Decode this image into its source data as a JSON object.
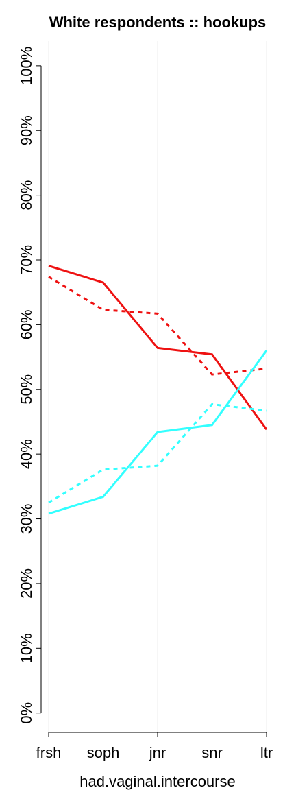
{
  "chart_data": {
    "type": "line",
    "title": "White respondents :: hookups",
    "x_label": "had.vaginal.intercourse",
    "categories": [
      "frsh",
      "soph",
      "jnr",
      "snr",
      "ltr"
    ],
    "series": [
      {
        "color": "#ee1111",
        "dashed": false,
        "values": [
          69.1,
          66.5,
          56.4,
          55.4,
          43.8
        ]
      },
      {
        "color": "#ee1111",
        "dashed": true,
        "values": [
          67.4,
          62.3,
          61.7,
          52.3,
          53.2
        ]
      },
      {
        "color": "#33ffff",
        "dashed": false,
        "values": [
          30.8,
          33.4,
          43.4,
          44.5,
          56.0
        ]
      },
      {
        "color": "#33ffff",
        "dashed": true,
        "values": [
          32.5,
          37.6,
          38.2,
          47.7,
          46.7
        ]
      }
    ],
    "ylim": [
      -3,
      103.8
    ],
    "yticks": [
      {
        "value": 0,
        "label": "0%"
      },
      {
        "value": 10,
        "label": "10%"
      },
      {
        "value": 20,
        "label": "20%"
      },
      {
        "value": 30,
        "label": "30%"
      },
      {
        "value": 40,
        "label": "40%"
      },
      {
        "value": 50,
        "label": "50%"
      },
      {
        "value": 60,
        "label": "60%"
      },
      {
        "value": 70,
        "label": "70%"
      },
      {
        "value": 80,
        "label": "80%"
      },
      {
        "value": 90,
        "label": "90%"
      },
      {
        "value": 100,
        "label": "100%"
      }
    ],
    "grid": "x",
    "reference_line_index": 3
  }
}
